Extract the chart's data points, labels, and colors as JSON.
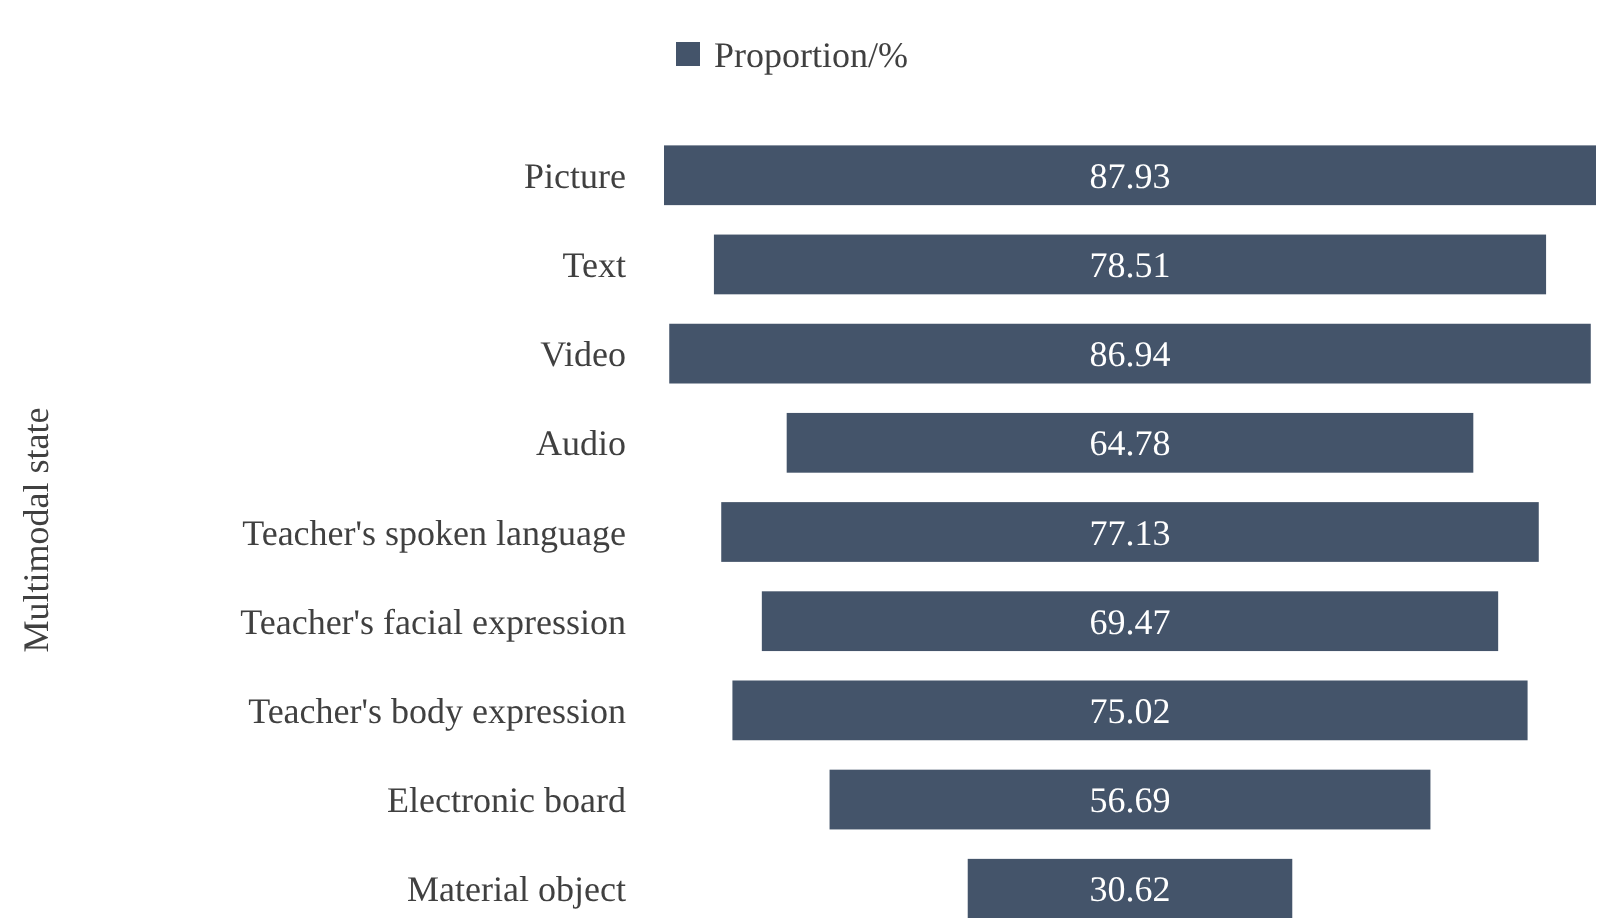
{
  "chart_data": {
    "type": "other",
    "ylabel": "Multimodal state",
    "categories": [
      "Picture",
      "Text",
      "Video",
      "Audio",
      "Teacher's spoken language",
      "Teacher's facial expression",
      "Teacher's body expression",
      "Electronic board",
      "Material object"
    ],
    "series": [
      {
        "name": "Proportion/%",
        "color": "#44546a",
        "values": [
          87.93,
          78.51,
          86.94,
          64.78,
          77.13,
          69.47,
          75.02,
          56.69,
          30.62
        ]
      }
    ],
    "data_labels": true,
    "legend": "top"
  }
}
